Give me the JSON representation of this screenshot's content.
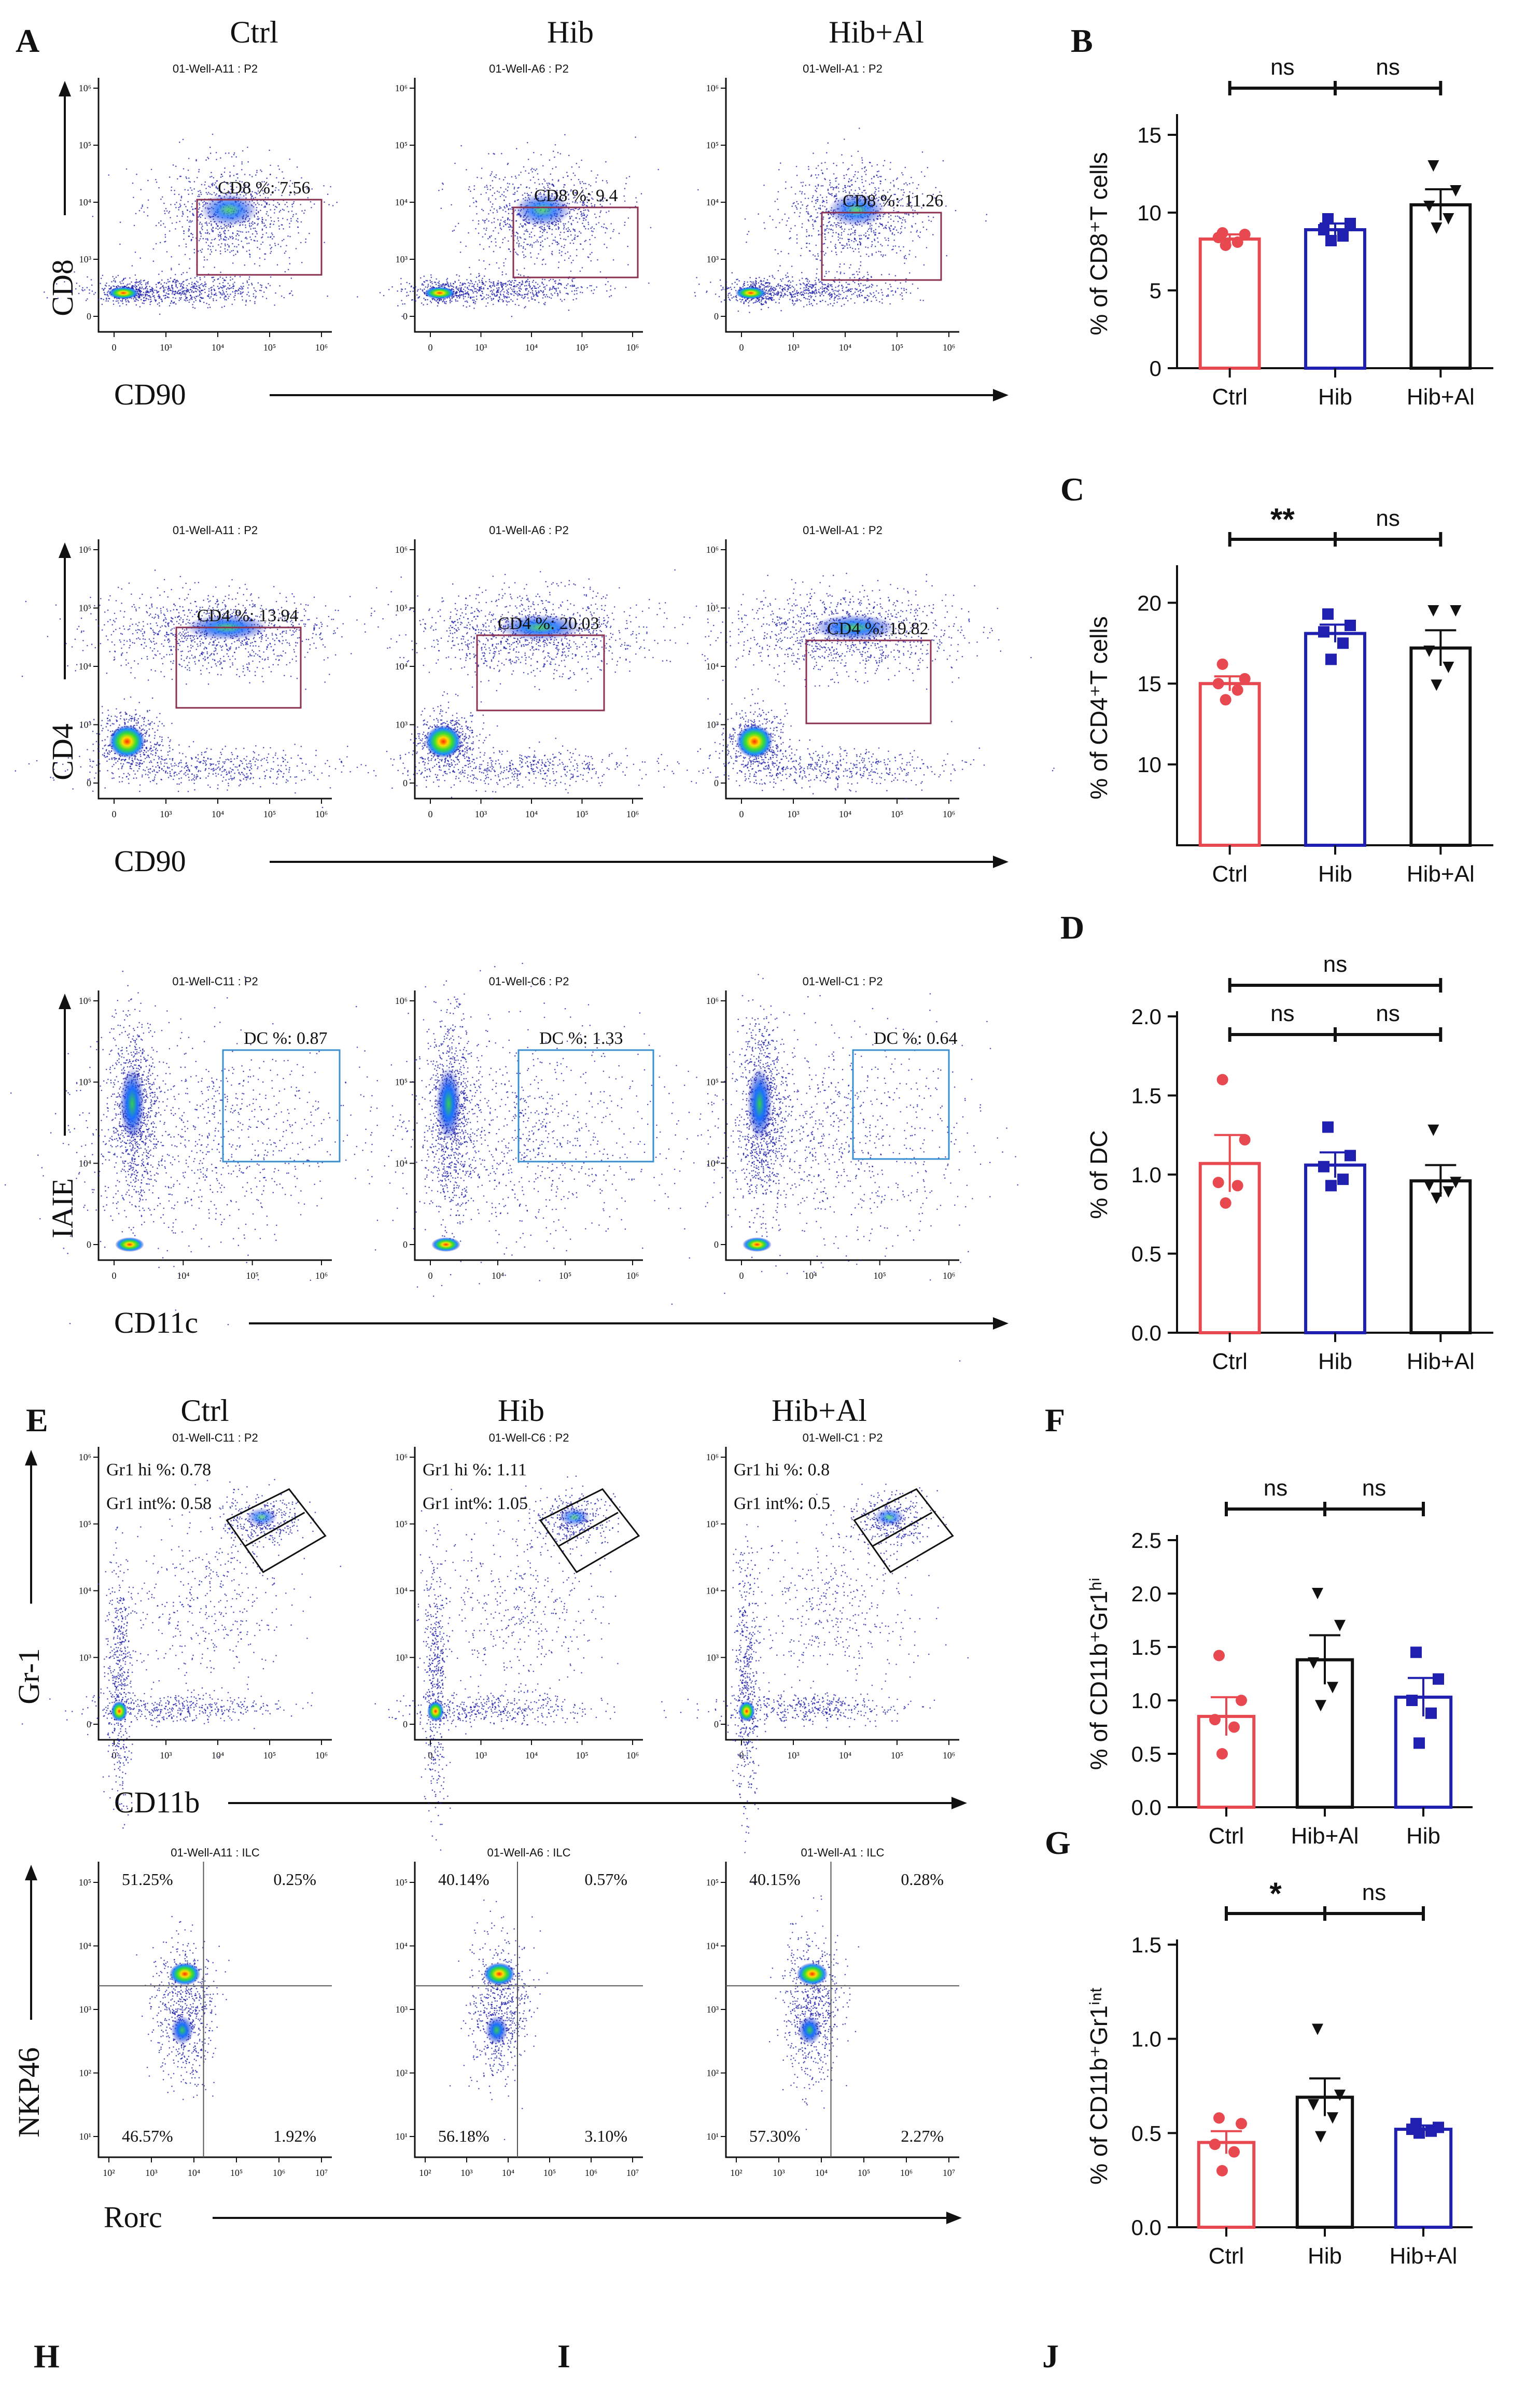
{
  "flow": {
    "groups": [
      "Ctrl",
      "Hib",
      "Hib+Al"
    ],
    "panels": [
      {
        "id": "cd8",
        "y_label": "CD8",
        "x_label": "CD90",
        "gates": [
          {
            "title": "01-Well-A11 : P2",
            "gate_label": "CD8 %: 7.56"
          },
          {
            "title": "01-Well-A6 : P2",
            "gate_label": "CD8 %: 9.4"
          },
          {
            "title": "01-Well-A1 : P2",
            "gate_label": "CD8 %: 11.26"
          }
        ]
      },
      {
        "id": "cd4",
        "y_label": "CD4",
        "x_label": "CD90",
        "gates": [
          {
            "title": "01-Well-A11 : P2",
            "gate_label": "CD4 %: 13.94"
          },
          {
            "title": "01-Well-A6 : P2",
            "gate_label": "CD4 %: 20.03"
          },
          {
            "title": "01-Well-A1 : P2",
            "gate_label": "CD4 %: 19.82"
          }
        ]
      },
      {
        "id": "dc",
        "y_label": "IAIE",
        "x_label": "CD11c",
        "gates": [
          {
            "title": "01-Well-C11 : P2",
            "gate_label": "DC %: 0.87"
          },
          {
            "title": "01-Well-C6 : P2",
            "gate_label": "DC %: 1.33"
          },
          {
            "title": "01-Well-C1 : P2",
            "gate_label": "DC %: 0.64"
          }
        ]
      },
      {
        "id": "gr1",
        "y_label": "Gr-1",
        "x_label": "CD11b",
        "gates": [
          {
            "title": "01-Well-C11 : P2",
            "gate_label": "Gr1 hi %: 0.78",
            "gate_label_2": "Gr1 int%: 0.58"
          },
          {
            "title": "01-Well-C6 : P2",
            "gate_label": "Gr1 hi %: 1.11",
            "gate_label_2": "Gr1 int%: 1.05"
          },
          {
            "title": "01-Well-C1 : P2",
            "gate_label": "Gr1 hi %: 0.8",
            "gate_label_2": "Gr1 int%: 0.5"
          }
        ]
      },
      {
        "id": "ilc",
        "y_label": "NKP46",
        "x_label": "Rorc",
        "gates": [
          {
            "title": "01-Well-A11 : ILC",
            "quadrants": [
              "51.25%",
              "0.25%",
              "46.57%",
              "1.92%"
            ]
          },
          {
            "title": "01-Well-A6 : ILC",
            "quadrants": [
              "40.14%",
              "0.57%",
              "56.18%",
              "3.10%"
            ]
          },
          {
            "title": "01-Well-A1 : ILC",
            "quadrants": [
              "40.15%",
              "0.28%",
              "57.30%",
              "2.27%"
            ]
          }
        ]
      }
    ],
    "ticks_a": [
      "0",
      "10³",
      "10⁴",
      "10⁵",
      "10⁶"
    ],
    "ticks_dc": [
      "0",
      "10⁴",
      "10⁵",
      "10⁶"
    ],
    "ticks_ilc_x": [
      "10²",
      "10³",
      "10⁴",
      "10⁵",
      "10⁶",
      "10⁷"
    ],
    "ticks_ilc_y": [
      "10¹",
      "10²",
      "10³",
      "10⁴",
      "10⁵"
    ]
  },
  "panel_letters": [
    "A",
    "B",
    "C",
    "D",
    "E",
    "F",
    "G",
    "H",
    "I",
    "J"
  ],
  "chart_data": [
    {
      "panel": "B",
      "type": "bar",
      "ylabel": "% of  CD8⁺T cells",
      "categories": [
        "Ctrl",
        "Hib",
        "Hib+Al"
      ],
      "colors": [
        "#e8484f",
        "#1f1fb0",
        "#111111"
      ],
      "marker": [
        "circle",
        "square",
        "triangle-down"
      ],
      "values": [
        8.3,
        8.9,
        10.5
      ],
      "errors": [
        0.3,
        0.4,
        1.0
      ],
      "points": [
        [
          7.9,
          8.1,
          8.4,
          8.6,
          8.7
        ],
        [
          8.2,
          8.5,
          8.9,
          9.3,
          9.6
        ],
        [
          9.0,
          9.6,
          10.4,
          11.4,
          13.0
        ]
      ],
      "ylim": [
        0,
        16
      ],
      "yticks": [
        0,
        5,
        10,
        15
      ],
      "comparisons": [
        {
          "from": 0,
          "to": 1,
          "label": "ns",
          "tier": 0
        },
        {
          "from": 1,
          "to": 2,
          "label": "ns",
          "tier": 0
        }
      ]
    },
    {
      "panel": "C",
      "type": "bar",
      "ylabel": "% of  CD4⁺T cells",
      "categories": [
        "Ctrl",
        "Hib",
        "Hib+Al"
      ],
      "colors": [
        "#e8484f",
        "#1f1fb0",
        "#111111"
      ],
      "marker": [
        "circle",
        "square",
        "triangle-down"
      ],
      "values": [
        15.0,
        18.1,
        17.2
      ],
      "errors": [
        0.45,
        0.55,
        1.1
      ],
      "points": [
        [
          14.0,
          14.6,
          15.0,
          15.3,
          16.2
        ],
        [
          16.5,
          17.5,
          18.2,
          18.6,
          19.3
        ],
        [
          14.9,
          16.0,
          17.0,
          19.5,
          19.5
        ]
      ],
      "ylim": [
        5,
        22
      ],
      "yticks": [
        10,
        15,
        20
      ],
      "comparisons": [
        {
          "from": 0,
          "to": 1,
          "label": "**",
          "tier": 0
        },
        {
          "from": 1,
          "to": 2,
          "label": "ns",
          "tier": 0
        }
      ]
    },
    {
      "panel": "D",
      "type": "bar",
      "ylabel": "% of  DC",
      "categories": [
        "Ctrl",
        "Hib",
        "Hib+Al"
      ],
      "colors": [
        "#e8484f",
        "#1f1fb0",
        "#111111"
      ],
      "marker": [
        "circle",
        "square",
        "triangle-down"
      ],
      "values": [
        1.07,
        1.06,
        0.96
      ],
      "errors": [
        0.18,
        0.08,
        0.1
      ],
      "points": [
        [
          0.82,
          0.93,
          0.95,
          1.22,
          1.6
        ],
        [
          0.93,
          0.97,
          1.05,
          1.12,
          1.3
        ],
        [
          0.85,
          0.89,
          0.93,
          0.95,
          1.28
        ]
      ],
      "ylim": [
        0,
        2.0
      ],
      "yticks": [
        0.0,
        0.5,
        1.0,
        1.5,
        2.0
      ],
      "comparisons": [
        {
          "from": 0,
          "to": 2,
          "label": "ns",
          "tier": 1
        },
        {
          "from": 0,
          "to": 1,
          "label": "ns",
          "tier": 0
        },
        {
          "from": 1,
          "to": 2,
          "label": "ns",
          "tier": 0
        }
      ]
    },
    {
      "panel": "F",
      "type": "bar",
      "ylabel": "% of  CD11b⁺Gr1ʰⁱ",
      "categories": [
        "Ctrl",
        "Hib+Al",
        "Hib"
      ],
      "colors": [
        "#e8484f",
        "#111111",
        "#1f1fb0"
      ],
      "marker": [
        "circle",
        "triangle-down",
        "square"
      ],
      "values": [
        0.85,
        1.38,
        1.03
      ],
      "errors": [
        0.18,
        0.23,
        0.18
      ],
      "points": [
        [
          0.5,
          0.75,
          0.82,
          1.0,
          1.42
        ],
        [
          0.95,
          1.12,
          1.35,
          1.7,
          2.0
        ],
        [
          0.6,
          0.88,
          1.0,
          1.2,
          1.45
        ]
      ],
      "ylim": [
        0,
        2.5
      ],
      "yticks": [
        0.0,
        0.5,
        1.0,
        1.5,
        2.0,
        2.5
      ],
      "comparisons": [
        {
          "from": 0,
          "to": 1,
          "label": "ns",
          "tier": 0
        },
        {
          "from": 1,
          "to": 2,
          "label": "ns",
          "tier": 0
        }
      ]
    },
    {
      "panel": "G",
      "type": "bar",
      "ylabel": "% of  CD11b⁺Gr1ⁱⁿᵗ",
      "categories": [
        "Ctrl",
        "Hib",
        "Hib+Al"
      ],
      "colors": [
        "#e8484f",
        "#111111",
        "#1f1fb0"
      ],
      "marker": [
        "circle",
        "triangle-down",
        "square"
      ],
      "values": [
        0.45,
        0.69,
        0.52
      ],
      "errors": [
        0.06,
        0.1,
        0.02
      ],
      "points": [
        [
          0.3,
          0.4,
          0.44,
          0.55,
          0.58
        ],
        [
          0.48,
          0.58,
          0.65,
          0.7,
          1.05
        ],
        [
          0.5,
          0.51,
          0.52,
          0.53,
          0.55
        ]
      ],
      "ylim": [
        0,
        1.5
      ],
      "yticks": [
        0.0,
        0.5,
        1.0,
        1.5
      ],
      "comparisons": [
        {
          "from": 0,
          "to": 1,
          "label": "*",
          "tier": 0
        },
        {
          "from": 1,
          "to": 2,
          "label": "ns",
          "tier": 0
        }
      ]
    }
  ]
}
